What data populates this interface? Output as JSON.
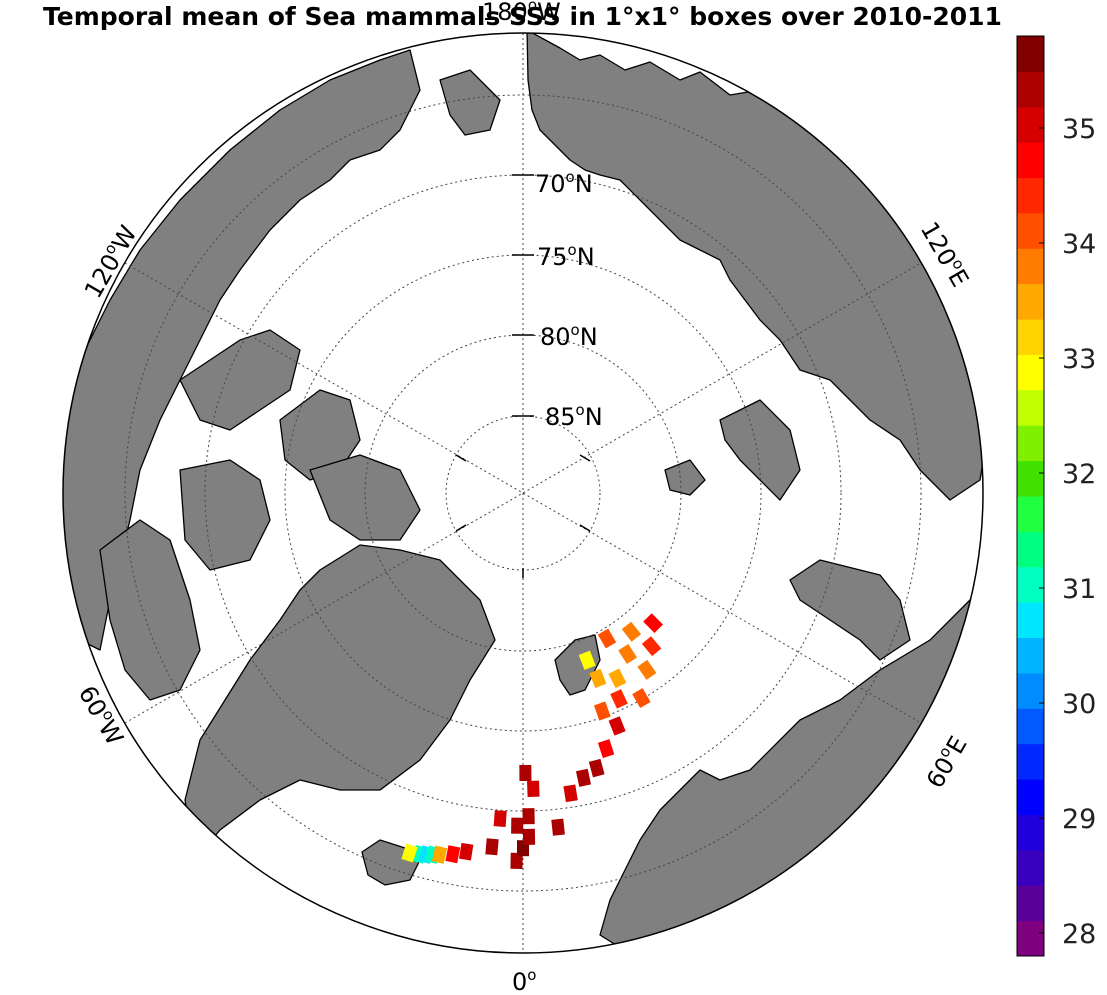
{
  "title": "Temporal mean of Sea mammals SSS in 1°x1° boxes over 2010-2011",
  "labels": {
    "lat": [
      "70",
      "75",
      "80",
      "85"
    ],
    "lat_suffix": "N",
    "lon_top": "180",
    "lon_top_suffix": "W",
    "lon_120w": "120",
    "lon_120w_suffix": "W",
    "lon_120e": "120",
    "lon_120e_suffix": "E",
    "lon_60w": "60",
    "lon_60w_suffix": "W",
    "lon_60e": "60",
    "lon_60e_suffix": "E",
    "lon_bottom": "0",
    "degree": "o"
  },
  "colorbar": {
    "ticks": [
      "35",
      "34",
      "33",
      "32",
      "31",
      "30",
      "29",
      "28"
    ],
    "tick_values": [
      35,
      34,
      33,
      32,
      31,
      30,
      29,
      28
    ],
    "range": [
      27.8,
      35.8
    ],
    "colors": [
      "#7f007f",
      "#5a009a",
      "#3a00c0",
      "#1f00dd",
      "#0000ff",
      "#0028ff",
      "#005aff",
      "#008cff",
      "#00b4ff",
      "#00e6ff",
      "#00ffc0",
      "#00ff80",
      "#20ff40",
      "#40e000",
      "#80f000",
      "#c0ff00",
      "#ffff00",
      "#ffd400",
      "#ffa800",
      "#ff7c00",
      "#ff5000",
      "#ff2800",
      "#ff0000",
      "#d40000",
      "#aa0000",
      "#800000"
    ]
  },
  "chart_data": {
    "type": "heatmap",
    "title": "Temporal mean of Sea mammals SSS in 1°x1° boxes over 2010-2011",
    "projection": "north-polar-stereographic",
    "lat_circles": [
      70,
      75,
      80,
      85
    ],
    "lon_labels": [
      "180°W",
      "120°W",
      "60°W",
      "0°",
      "60°E",
      "120°E"
    ],
    "colorbar_range": [
      27.8,
      35.8
    ],
    "cells": [
      {
        "lon": -16,
        "lat": 66.5,
        "value": 31.0
      },
      {
        "lon": -15,
        "lat": 66.6,
        "value": 30.8
      },
      {
        "lon": -14,
        "lat": 66.7,
        "value": 30.9
      },
      {
        "lon": -17.5,
        "lat": 66.4,
        "value": 32.8
      },
      {
        "lon": -13,
        "lat": 66.8,
        "value": 33.6
      },
      {
        "lon": -11,
        "lat": 67.0,
        "value": 34.8
      },
      {
        "lon": -9,
        "lat": 67.3,
        "value": 35.0
      },
      {
        "lon": -5,
        "lat": 67.8,
        "value": 35.3
      },
      {
        "lon": -1,
        "lat": 67.0,
        "value": 35.4
      },
      {
        "lon": 0,
        "lat": 67.8,
        "value": 35.5
      },
      {
        "lon": 1,
        "lat": 68.5,
        "value": 35.3
      },
      {
        "lon": -1,
        "lat": 69.2,
        "value": 35.2
      },
      {
        "lon": 1,
        "lat": 69.8,
        "value": 35.3
      },
      {
        "lon": -4,
        "lat": 69.6,
        "value": 35.1
      },
      {
        "lon": 0.5,
        "lat": 72.5,
        "value": 35.2
      },
      {
        "lon": 2,
        "lat": 71.5,
        "value": 35.0
      },
      {
        "lon": 6,
        "lat": 69.0,
        "value": 35.2
      },
      {
        "lon": 9,
        "lat": 71.0,
        "value": 35.1
      },
      {
        "lon": 12,
        "lat": 71.8,
        "value": 35.3
      },
      {
        "lon": 15,
        "lat": 72.2,
        "value": 35.2
      },
      {
        "lon": 18,
        "lat": 73.2,
        "value": 34.6
      },
      {
        "lon": 22,
        "lat": 74.3,
        "value": 35.0
      },
      {
        "lon": 20,
        "lat": 75.5,
        "value": 34.2
      },
      {
        "lon": 25,
        "lat": 75.8,
        "value": 34.4
      },
      {
        "lon": 30,
        "lat": 75.2,
        "value": 34.0
      },
      {
        "lon": 35,
        "lat": 76.5,
        "value": 33.8
      },
      {
        "lon": 22,
        "lat": 77.5,
        "value": 33.4
      },
      {
        "lon": 27,
        "lat": 77.0,
        "value": 33.6
      },
      {
        "lon": 33,
        "lat": 78.0,
        "value": 33.9
      },
      {
        "lon": 40,
        "lat": 77.5,
        "value": 34.3
      },
      {
        "lon": 30,
        "lat": 79.5,
        "value": 34.1
      },
      {
        "lon": 38,
        "lat": 79.0,
        "value": 33.9
      },
      {
        "lon": 45,
        "lat": 78.5,
        "value": 34.6
      },
      {
        "lon": 21,
        "lat": 78.8,
        "value": 32.9
      }
    ]
  }
}
